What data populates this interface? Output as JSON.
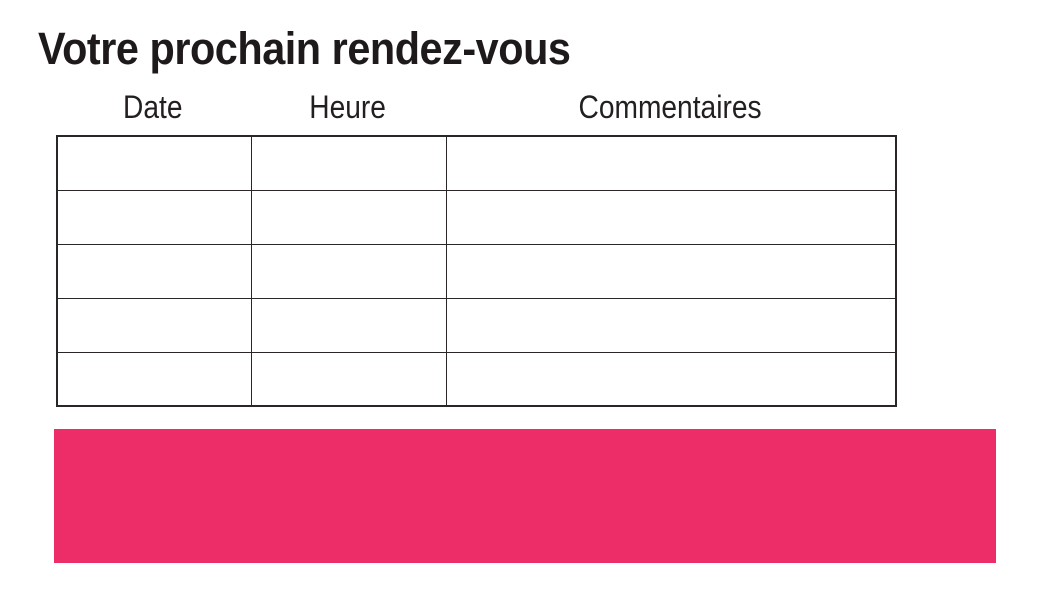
{
  "page": {
    "title": "Votre prochain rendez-vous"
  },
  "table": {
    "headers": [
      "Date",
      "Heure",
      "Commentaires"
    ],
    "rows": [
      [
        "",
        "",
        ""
      ],
      [
        "",
        "",
        ""
      ],
      [
        "",
        "",
        ""
      ],
      [
        "",
        "",
        ""
      ],
      [
        "",
        "",
        ""
      ]
    ]
  },
  "colors": {
    "banner": "#ED2D67",
    "border": "#2A2627",
    "title_text": "#1E1A1B",
    "header_text": "#231F20"
  }
}
